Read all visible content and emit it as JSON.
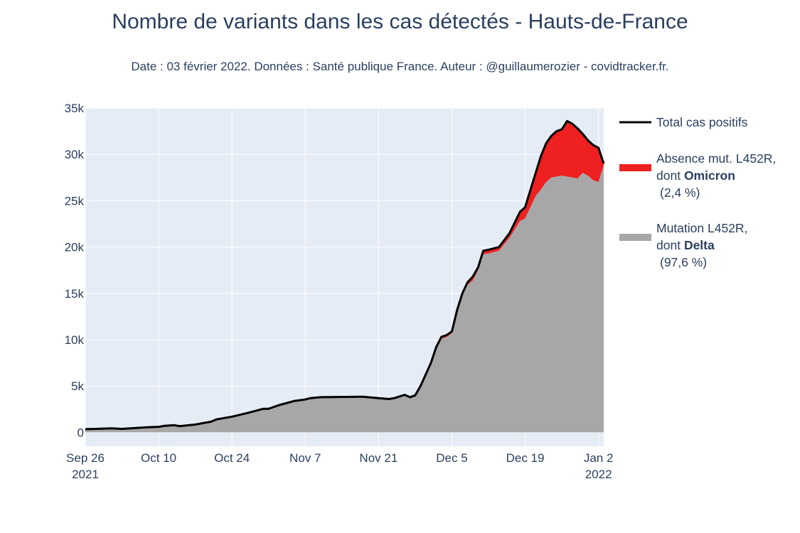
{
  "chart_data": {
    "type": "area",
    "title": "Nombre de variants dans les cas détectés - Hauts-de-France",
    "subtitle": "Date : 03 février 2022. Données : Santé publique France. Auteur : @guillaumerozier - covidtracker.fr.",
    "xlabel": "",
    "ylabel": "",
    "ylim": [
      -1500,
      35000
    ],
    "y_ticks": [
      {
        "value": 0,
        "label": "0"
      },
      {
        "value": 5000,
        "label": "5k"
      },
      {
        "value": 10000,
        "label": "10k"
      },
      {
        "value": 15000,
        "label": "15k"
      },
      {
        "value": 20000,
        "label": "20k"
      },
      {
        "value": 25000,
        "label": "25k"
      },
      {
        "value": 30000,
        "label": "30k"
      },
      {
        "value": 35000,
        "label": "35k"
      }
    ],
    "x_range": [
      "2021-09-26",
      "2022-01-03"
    ],
    "x_ticks": [
      {
        "date": "2021-09-26",
        "label": "Sep 26",
        "label2": "2021"
      },
      {
        "date": "2021-10-10",
        "label": "Oct 10",
        "label2": ""
      },
      {
        "date": "2021-10-24",
        "label": "Oct 24",
        "label2": ""
      },
      {
        "date": "2021-11-07",
        "label": "Nov 7",
        "label2": ""
      },
      {
        "date": "2021-11-21",
        "label": "Nov 21",
        "label2": ""
      },
      {
        "date": "2021-12-05",
        "label": "Dec 5",
        "label2": ""
      },
      {
        "date": "2021-12-19",
        "label": "Dec 19",
        "label2": ""
      },
      {
        "date": "2022-01-02",
        "label": "Jan 2",
        "label2": "2022"
      }
    ],
    "grid": true,
    "legend_position": "right",
    "series": [
      {
        "key": "total",
        "name": "Total cas positifs",
        "kind": "line",
        "color": "#000000",
        "points": [
          [
            "2021-09-26",
            350
          ],
          [
            "2021-10-01",
            430
          ],
          [
            "2021-10-03",
            380
          ],
          [
            "2021-10-08",
            560
          ],
          [
            "2021-10-10",
            600
          ],
          [
            "2021-10-11",
            700
          ],
          [
            "2021-10-13",
            780
          ],
          [
            "2021-10-14",
            680
          ],
          [
            "2021-10-17",
            850
          ],
          [
            "2021-10-20",
            1150
          ],
          [
            "2021-10-21",
            1400
          ],
          [
            "2021-10-24",
            1700
          ],
          [
            "2021-10-27",
            2100
          ],
          [
            "2021-10-30",
            2550
          ],
          [
            "2021-10-31",
            2550
          ],
          [
            "2021-11-02",
            2950
          ],
          [
            "2021-11-05",
            3400
          ],
          [
            "2021-11-07",
            3550
          ],
          [
            "2021-11-08",
            3700
          ],
          [
            "2021-11-10",
            3800
          ],
          [
            "2021-11-18",
            3850
          ],
          [
            "2021-11-21",
            3700
          ],
          [
            "2021-11-23",
            3600
          ],
          [
            "2021-11-24",
            3700
          ],
          [
            "2021-11-26",
            4050
          ],
          [
            "2021-11-27",
            3800
          ],
          [
            "2021-11-28",
            4000
          ],
          [
            "2021-11-29",
            5000
          ],
          [
            "2021-12-01",
            7500
          ],
          [
            "2021-12-02",
            9200
          ],
          [
            "2021-12-03",
            10300
          ],
          [
            "2021-12-04",
            10500
          ],
          [
            "2021-12-05",
            10900
          ],
          [
            "2021-12-06",
            13200
          ],
          [
            "2021-12-07",
            15000
          ],
          [
            "2021-12-08",
            16200
          ],
          [
            "2021-12-09",
            16800
          ],
          [
            "2021-12-10",
            17800
          ],
          [
            "2021-12-11",
            19600
          ],
          [
            "2021-12-12",
            19700
          ],
          [
            "2021-12-14",
            20000
          ],
          [
            "2021-12-16",
            21500
          ],
          [
            "2021-12-18",
            23800
          ],
          [
            "2021-12-19",
            24300
          ],
          [
            "2021-12-21",
            28000
          ],
          [
            "2021-12-22",
            29800
          ],
          [
            "2021-12-23",
            31200
          ],
          [
            "2021-12-24",
            32000
          ],
          [
            "2021-12-25",
            32500
          ],
          [
            "2021-12-26",
            32700
          ],
          [
            "2021-12-27",
            33600
          ],
          [
            "2021-12-28",
            33300
          ],
          [
            "2021-12-29",
            32800
          ],
          [
            "2021-12-30",
            32200
          ],
          [
            "2021-12-31",
            31500
          ],
          [
            "2022-01-01",
            31000
          ],
          [
            "2022-01-02",
            30700
          ],
          [
            "2022-01-03",
            29000
          ]
        ]
      },
      {
        "key": "omicron",
        "name": "Absence mut. L452R,",
        "legend_prefix": "dont ",
        "legend_bold": "Omicron",
        "legend_share": "(2,4 %)",
        "kind": "area",
        "color": "#ee2020"
      },
      {
        "key": "delta",
        "name": "Mutation L452R,",
        "legend_prefix": "dont ",
        "legend_bold": "Delta",
        "legend_share": "(97,6 %)",
        "kind": "area",
        "color": "#a7a7a7",
        "points": [
          [
            "2021-09-26",
            350
          ],
          [
            "2021-10-01",
            430
          ],
          [
            "2021-10-03",
            380
          ],
          [
            "2021-10-08",
            560
          ],
          [
            "2021-10-10",
            600
          ],
          [
            "2021-10-11",
            700
          ],
          [
            "2021-10-13",
            780
          ],
          [
            "2021-10-14",
            680
          ],
          [
            "2021-10-17",
            850
          ],
          [
            "2021-10-20",
            1150
          ],
          [
            "2021-10-21",
            1400
          ],
          [
            "2021-10-24",
            1700
          ],
          [
            "2021-10-27",
            2100
          ],
          [
            "2021-10-30",
            2550
          ],
          [
            "2021-10-31",
            2550
          ],
          [
            "2021-11-02",
            2950
          ],
          [
            "2021-11-05",
            3400
          ],
          [
            "2021-11-07",
            3550
          ],
          [
            "2021-11-08",
            3700
          ],
          [
            "2021-11-10",
            3800
          ],
          [
            "2021-11-18",
            3850
          ],
          [
            "2021-11-21",
            3700
          ],
          [
            "2021-11-23",
            3600
          ],
          [
            "2021-11-24",
            3700
          ],
          [
            "2021-11-26",
            4050
          ],
          [
            "2021-11-27",
            3800
          ],
          [
            "2021-11-28",
            4000
          ],
          [
            "2021-11-29",
            5000
          ],
          [
            "2021-12-01",
            7500
          ],
          [
            "2021-12-02",
            9100
          ],
          [
            "2021-12-03",
            10100
          ],
          [
            "2021-12-04",
            10300
          ],
          [
            "2021-12-05",
            10700
          ],
          [
            "2021-12-06",
            13000
          ],
          [
            "2021-12-07",
            14800
          ],
          [
            "2021-12-08",
            15900
          ],
          [
            "2021-12-09",
            16400
          ],
          [
            "2021-12-10",
            17500
          ],
          [
            "2021-12-11",
            19200
          ],
          [
            "2021-12-12",
            19300
          ],
          [
            "2021-12-14",
            19600
          ],
          [
            "2021-12-16",
            21000
          ],
          [
            "2021-12-18",
            22800
          ],
          [
            "2021-12-19",
            23100
          ],
          [
            "2021-12-21",
            25500
          ],
          [
            "2021-12-22",
            26200
          ],
          [
            "2021-12-23",
            27000
          ],
          [
            "2021-12-24",
            27500
          ],
          [
            "2021-12-25",
            27600
          ],
          [
            "2021-12-26",
            27700
          ],
          [
            "2021-12-27",
            27600
          ],
          [
            "2021-12-28",
            27500
          ],
          [
            "2021-12-29",
            27400
          ],
          [
            "2021-12-30",
            28000
          ],
          [
            "2021-12-31",
            27700
          ],
          [
            "2022-01-01",
            27200
          ],
          [
            "2022-01-02",
            27000
          ],
          [
            "2022-01-03",
            28800
          ]
        ]
      }
    ],
    "colors": {
      "plot_background": "#e5ecf6",
      "gridline": "#ffffff",
      "text": "#2a3f5f"
    }
  }
}
